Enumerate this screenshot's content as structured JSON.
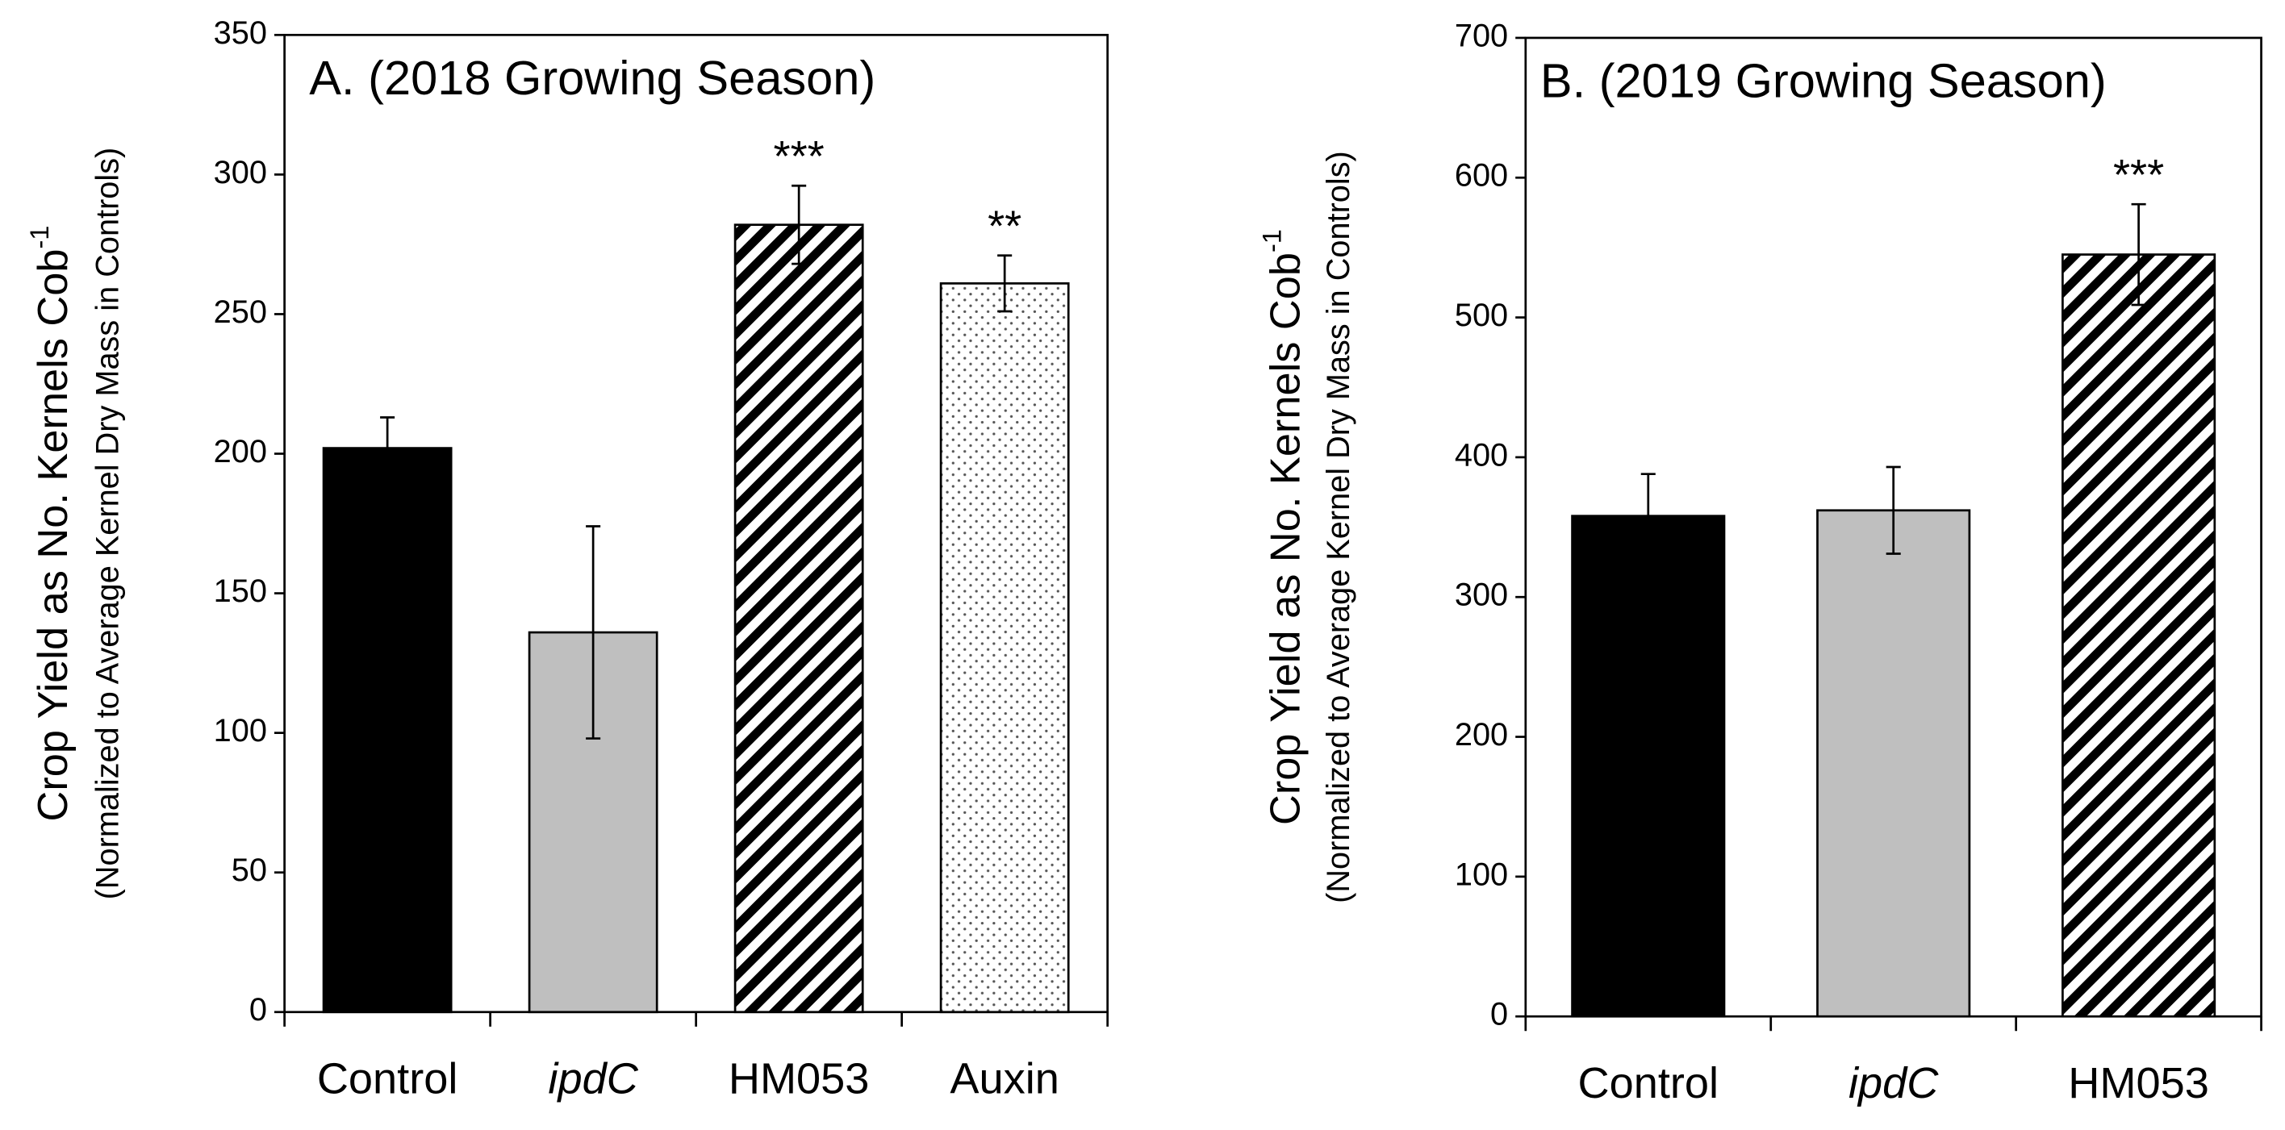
{
  "chart_data": [
    {
      "type": "bar",
      "title": "A.  (2018 Growing Season)",
      "ylabel": "Crop Yield as No. Kernels Cob",
      "ylabel_superscript": "-1",
      "ylabel_note": "(Normalized to Average Kernel Dry Mass in Controls)",
      "categories": [
        "Control",
        "ipdC",
        "HM053",
        "Auxin"
      ],
      "italic_categories": [
        false,
        true,
        false,
        false
      ],
      "values": [
        202,
        136,
        282,
        261
      ],
      "errors": [
        11,
        38,
        14,
        10
      ],
      "annotations": [
        null,
        null,
        "***",
        "**"
      ],
      "fills": [
        "solid-black",
        "solid-gray",
        "diagonal-hatch",
        "dots"
      ],
      "ylim": [
        0,
        350
      ],
      "yticks": [
        0,
        50,
        100,
        150,
        200,
        250,
        300,
        350
      ],
      "grid": false
    },
    {
      "type": "bar",
      "title": "B.  (2019 Growing Season)",
      "ylabel": "Crop Yield as No. Kernels Cob",
      "ylabel_superscript": "-1",
      "ylabel_note": "(Normalized to Average Kernel Dry Mass in Controls)",
      "categories": [
        "Control",
        "ipdC",
        "HM053"
      ],
      "italic_categories": [
        false,
        true,
        false
      ],
      "values": [
        358,
        362,
        545
      ],
      "errors": [
        30,
        31,
        36
      ],
      "annotations": [
        null,
        null,
        "***"
      ],
      "fills": [
        "solid-black",
        "solid-gray",
        "diagonal-hatch"
      ],
      "ylim": [
        0,
        700
      ],
      "yticks": [
        0,
        100,
        200,
        300,
        400,
        500,
        600,
        700
      ],
      "grid": false
    }
  ]
}
